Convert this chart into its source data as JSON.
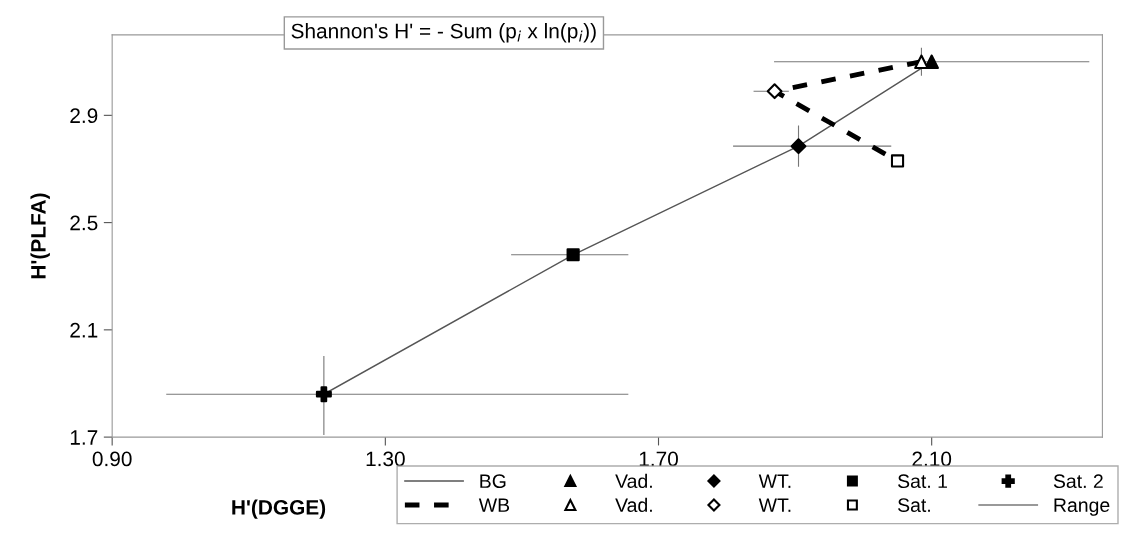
{
  "chart_data": {
    "type": "scatter",
    "title": "Shannon's H' = - Sum (p$_{i}$ x ln(p$_{i}$))",
    "xlabel": "H'(DGGE)",
    "ylabel": "H'(PLFA)",
    "xlim": [
      0.9,
      2.35
    ],
    "xticks": [
      {
        "value": 0.9,
        "label": "0.90"
      },
      {
        "value": 1.3,
        "label": "1.30"
      },
      {
        "value": 1.7,
        "label": "1.70"
      },
      {
        "value": 2.1,
        "label": "2.10"
      }
    ],
    "ylim": [
      1.7,
      3.2
    ],
    "yticks": [
      1.7,
      2.1,
      2.5,
      2.9
    ],
    "legend": "bottom",
    "series": [
      {
        "name": "BG",
        "type": "line",
        "color": "#555555",
        "line_style": "solid",
        "x": [
          1.21,
          1.575,
          1.905,
          2.1
        ],
        "values": [
          1.86,
          2.38,
          2.785,
          3.1
        ]
      },
      {
        "name": "WB",
        "type": "line",
        "color": "#000000",
        "line_style": "dashed",
        "x": [
          2.085,
          1.87,
          2.05
        ],
        "values": [
          3.1,
          2.99,
          2.73
        ]
      },
      {
        "name": "Vad.",
        "color": "#000000",
        "marker": "triangle",
        "x": [
          2.1
        ],
        "values": [
          3.1
        ],
        "xerrors": [
          [
            1.87,
            2.33
          ]
        ]
      },
      {
        "name": "Vad.",
        "color": "#ffffff",
        "marker": "triangle",
        "x": [
          2.085
        ],
        "values": [
          3.1
        ],
        "errors": [
          [
            3.05,
            3.15
          ]
        ]
      },
      {
        "name": "WT.",
        "color": "#000000",
        "marker": "diamond",
        "x": [
          1.905
        ],
        "values": [
          2.785
        ],
        "xerrors": [
          [
            1.81,
            2.04
          ]
        ],
        "errors": [
          [
            2.71,
            2.86
          ]
        ]
      },
      {
        "name": "WT.",
        "color": "#ffffff",
        "marker": "diamond",
        "x": [
          1.87
        ],
        "values": [
          2.99
        ],
        "xerrors": [
          [
            1.84,
            1.89
          ]
        ]
      },
      {
        "name": "Sat. 1",
        "color": "#000000",
        "marker": "square",
        "x": [
          1.575
        ],
        "values": [
          2.38
        ],
        "xerrors": [
          [
            1.485,
            1.655
          ]
        ]
      },
      {
        "name": "Sat.",
        "color": "#ffffff",
        "marker": "square",
        "x": [
          2.05
        ],
        "values": [
          2.73
        ]
      },
      {
        "name": "Sat. 2",
        "color": "#000000",
        "marker": "cross",
        "x": [
          1.21
        ],
        "values": [
          1.86
        ],
        "xerrors": [
          [
            0.98,
            1.655
          ]
        ],
        "errors": [
          [
            1.71,
            2.0
          ]
        ]
      },
      {
        "name": "Range",
        "type": "line",
        "color": "#777777"
      }
    ]
  }
}
